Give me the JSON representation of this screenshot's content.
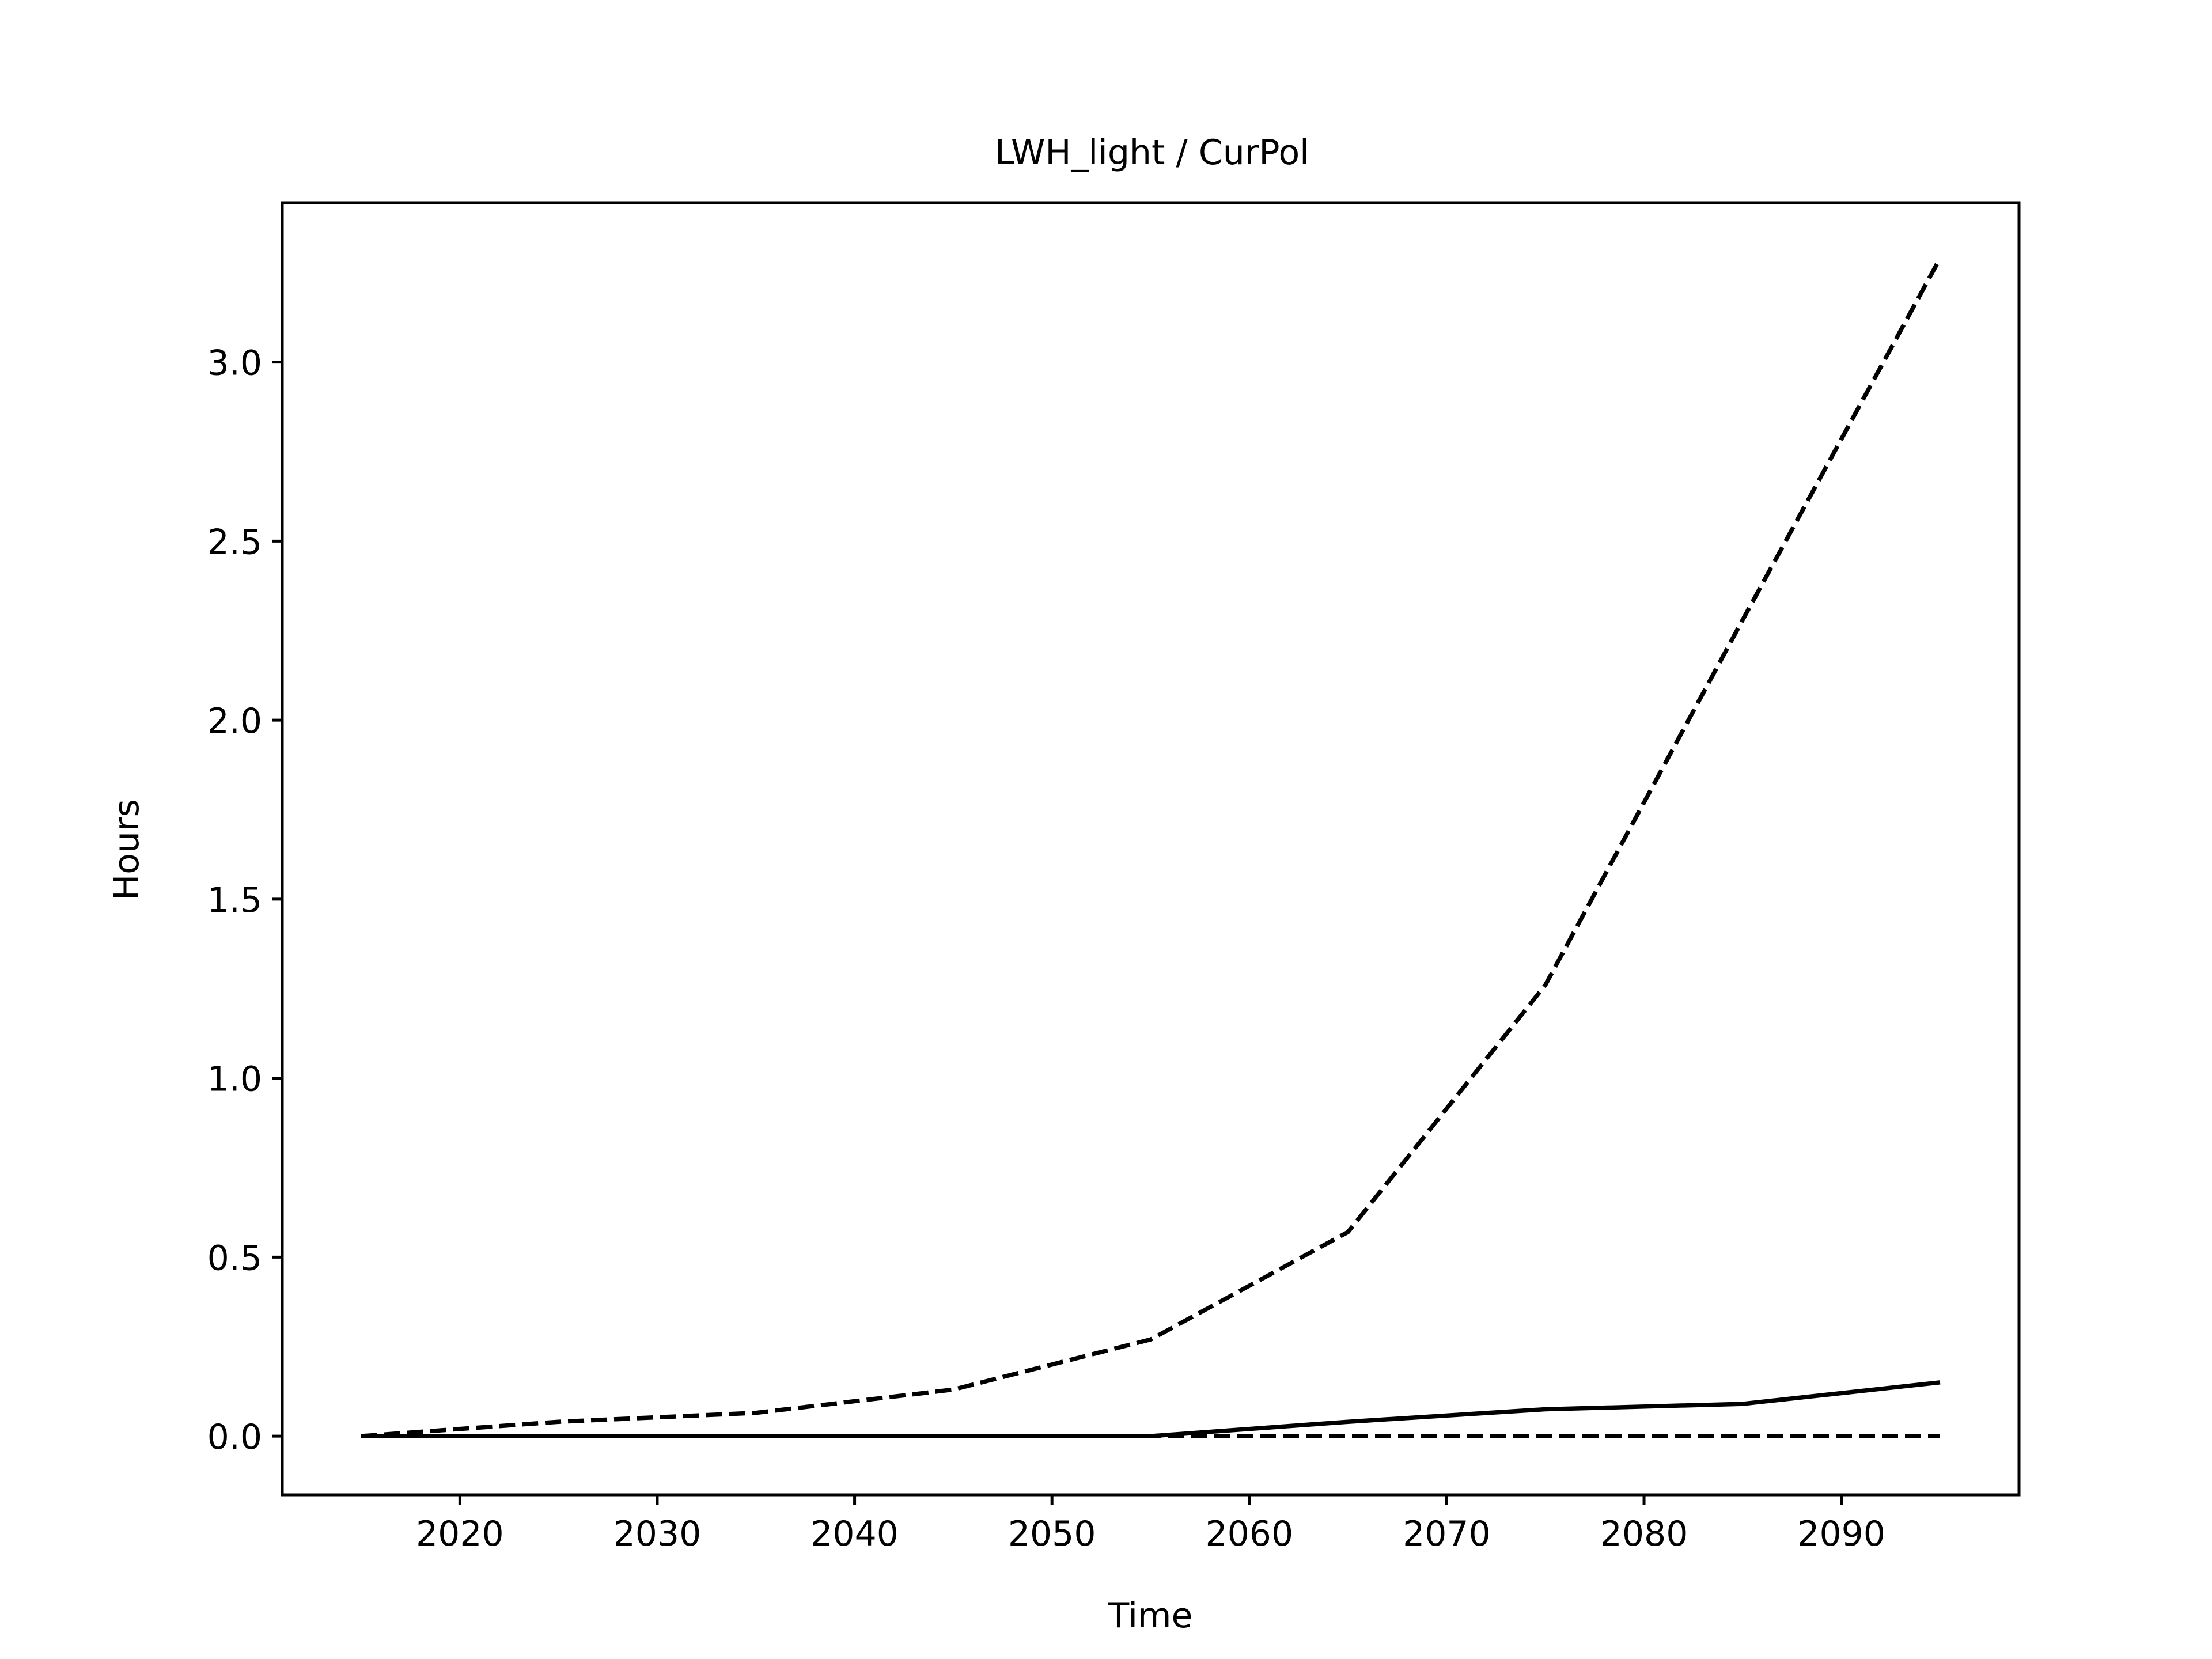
{
  "chart_data": {
    "type": "line",
    "title": "LWH_light / CurPol",
    "xlabel": "Time",
    "ylabel": "Hours",
    "xlim": [
      2011,
      2099
    ],
    "ylim": [
      -0.164,
      3.445
    ],
    "xticks": [
      2020,
      2030,
      2040,
      2050,
      2060,
      2070,
      2080,
      2090
    ],
    "yticks": [
      0.0,
      0.5,
      1.0,
      1.5,
      2.0,
      2.5,
      3.0
    ],
    "ytick_labels": [
      "0.0",
      "0.5",
      "1.0",
      "1.5",
      "2.0",
      "2.5",
      "3.0"
    ],
    "grid": false,
    "legend": null,
    "x": [
      2015,
      2025,
      2035,
      2045,
      2055,
      2065,
      2075,
      2085,
      2095
    ],
    "series": [
      {
        "style": "dashed",
        "color": "#000000",
        "values": [
          0.0,
          0.04,
          0.065,
          0.13,
          0.27,
          0.57,
          1.26,
          2.28,
          3.29
        ]
      },
      {
        "style": "solid",
        "color": "#000000",
        "values": [
          0.0,
          0.0,
          0.0,
          0.0,
          0.0,
          0.04,
          0.075,
          0.09,
          0.15
        ]
      },
      {
        "style": "dashed",
        "color": "#000000",
        "values": [
          0.0,
          0.0,
          0.0,
          0.0,
          0.0,
          0.0,
          0.0,
          0.0,
          0.0
        ]
      }
    ]
  }
}
